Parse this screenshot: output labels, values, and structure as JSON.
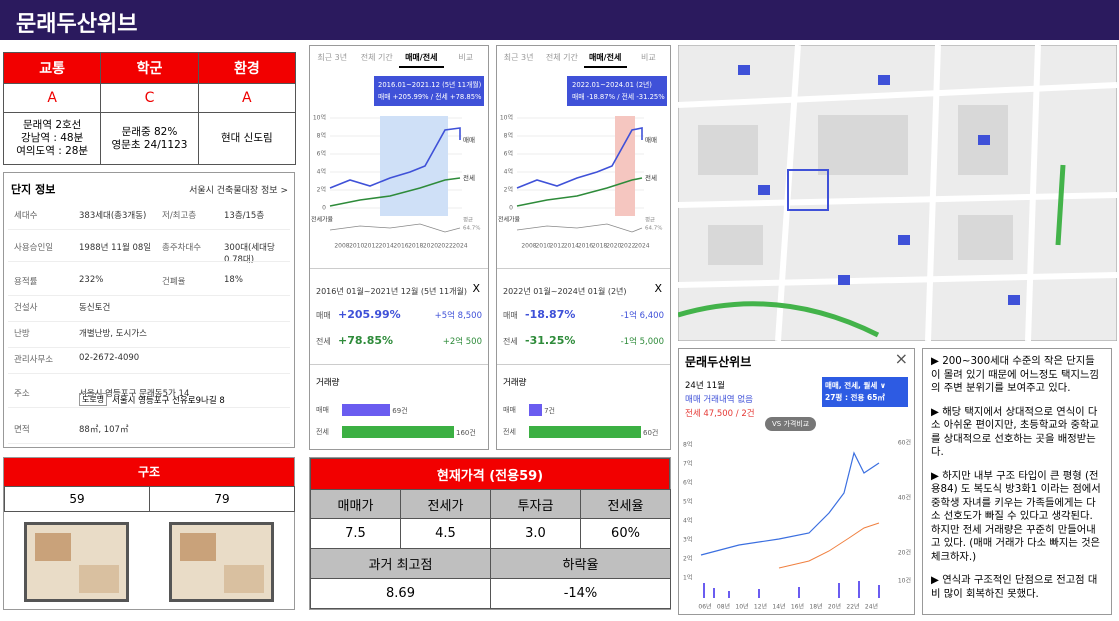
{
  "header": {
    "title": "문래두산위브"
  },
  "scores": {
    "headers": [
      "교통",
      "학군",
      "환경"
    ],
    "grades": [
      "A",
      "C",
      "A"
    ],
    "details": [
      [
        "문래역 2호선",
        "강남역 : 48분",
        "여의도역 : 28분"
      ],
      [
        "문래중 82%",
        "영문초 24/1123"
      ],
      [
        "현대 신도림"
      ]
    ]
  },
  "complex_info": {
    "title": "단지 정보",
    "link": "서울시 건축물대장 정보 >",
    "rows": [
      [
        "세대수",
        "383세대(총3개동)",
        "저/최고층",
        "13층/15층"
      ],
      [
        "사용승인일",
        "1988년 11월 08일",
        "총주차대수",
        "300대(세대당 0.78대)"
      ],
      [
        "용적률",
        "232%",
        "건폐율",
        "18%"
      ],
      [
        "건설사",
        "동신토건"
      ],
      [
        "난방",
        "개별난방, 도시가스"
      ],
      [
        "관리사무소",
        "02-2672-4090"
      ],
      [
        "주소",
        "서울시 영등포구 문래동5가 14"
      ],
      [
        "면적",
        "88㎡, 107㎡"
      ]
    ],
    "road": {
      "tag": "도로명",
      "address": "서울시 영등포구 선유로9나길 8"
    }
  },
  "structure": {
    "title": "구조",
    "types": [
      "59",
      "79"
    ]
  },
  "price": {
    "title": "현재가격 (전용59)",
    "headers": [
      "매매가",
      "전세가",
      "투자금",
      "전세율"
    ],
    "values": [
      "7.5",
      "4.5",
      "3.0",
      "60%"
    ],
    "headers2": [
      "과거 최고점",
      "하락율"
    ],
    "values2": [
      "8.69",
      "-14%"
    ]
  },
  "charts": [
    {
      "tabs": [
        "최근 3년",
        "전체 기간",
        "매매/전세",
        "비교"
      ],
      "tooltip": [
        "2016.01~2021.12 (5년 11개월)",
        "매매 +205.99% / 전세 +78.85%"
      ],
      "yticks": [
        "10억",
        "8억",
        "6억",
        "4억",
        "2억",
        "0"
      ],
      "xticks": [
        "2008",
        "2010",
        "2012",
        "2014",
        "2016",
        "2018",
        "2020",
        "2022",
        "2024"
      ],
      "series": [
        "매매",
        "전세"
      ],
      "lower": "전세가율",
      "avg": [
        "평균",
        "64.7%"
      ],
      "period": "2016년 01월~2021년 12월 (5년 11개월)",
      "close": "X",
      "stats": [
        {
          "name": "매매",
          "pct": "+205.99%",
          "amount": "+5억 8,500"
        },
        {
          "name": "전세",
          "pct": "+78.85%",
          "amount": "+2억 500"
        }
      ],
      "volume_title": "거래량",
      "volume": [
        {
          "name": "매매",
          "value": 69,
          "label": "69건"
        },
        {
          "name": "전세",
          "value": 160,
          "label": "160건"
        }
      ]
    },
    {
      "tabs": [
        "최근 3년",
        "전체 기간",
        "매매/전세",
        "비교"
      ],
      "tooltip": [
        "2022.01~2024.01 (2년)",
        "매매 -18.87% / 전세 -31.25%"
      ],
      "yticks": [
        "10억",
        "8억",
        "6억",
        "4억",
        "2억",
        "0"
      ],
      "xticks": [
        "2008",
        "2010",
        "2012",
        "2014",
        "2016",
        "2018",
        "2020",
        "2022",
        "2024"
      ],
      "series": [
        "매매",
        "전세"
      ],
      "lower": "전세가율",
      "avg": [
        "평균",
        "64.7%"
      ],
      "period": "2022년 01월~2024년 01월 (2년)",
      "close": "X",
      "stats": [
        {
          "name": "매매",
          "pct": "-18.87%",
          "amount": "-1억 6,400"
        },
        {
          "name": "전세",
          "pct": "-31.25%",
          "amount": "-1억 5,000"
        }
      ],
      "volume_title": "거래량",
      "volume": [
        {
          "name": "매매",
          "value": 7,
          "label": "7건"
        },
        {
          "name": "전세",
          "value": 60,
          "label": "60건"
        }
      ]
    }
  ],
  "app": {
    "title": "문래두산위브",
    "month": "24년 11월",
    "sale": "매매 거래내역 없음",
    "rent": "전세 47,500 / 2건",
    "filter": "매매, 전세, 월세 ∨",
    "size": "27평 : 전용 65㎡",
    "compare": "VS 가격비교",
    "yticks": [
      "8억",
      "7억",
      "6억",
      "5억",
      "4억",
      "3억",
      "2억",
      "1억"
    ],
    "y2ticks": [
      "60건",
      "40건",
      "20건",
      "10건"
    ],
    "xticks": [
      "06년",
      "08년",
      "10년",
      "12년",
      "14년",
      "16년",
      "18년",
      "20년",
      "22년",
      "24년"
    ]
  },
  "notes": [
    "▶ 200~300세대 수준의 작은 단지들이 몰려 있기 때문에 어느정도 택지느낌의 주변 분위기를 보여주고 있다.",
    "▶ 해당 택지에서 상대적으로 연식이 다소 아쉬운 편이지만, 초등학교와 중학교를 상대적으로 선호하는 곳을 배정받는다.",
    "▶ 하지만 내부 구조 타입이 큰 평형 (전용84) 도 복도식 방3화1 이라는 점에서 중학생 자녀를 키우는 가족들에게는 다소 선호도가 빠질 수 있다고 생각된다. 하지만 전세 거래량은 꾸준히 만들어내고 있다. (매매 거래가 다소 빠지는 것은 체크하자.)",
    "▶ 연식과 구조적인 단점으로 전고점 대비 많이 회복하진 못했다."
  ]
}
